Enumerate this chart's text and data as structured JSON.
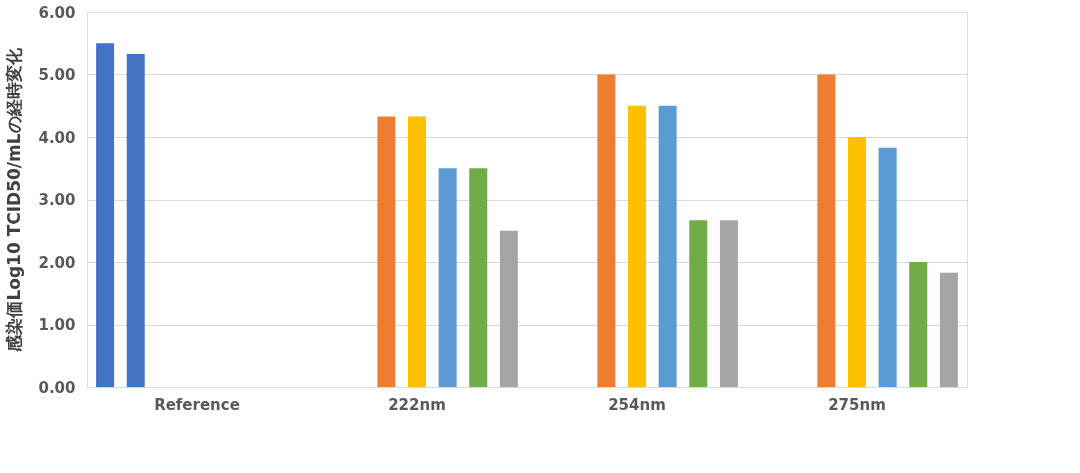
{
  "chart_data": {
    "type": "bar",
    "ylabel": "感染価Log10 TCID50/mLの経時変化",
    "categories": [
      "Reference",
      "222nm",
      "254nm",
      "275nm"
    ],
    "series": [
      {
        "color": "#4472c4",
        "values": [
          5.5,
          null,
          null,
          null
        ]
      },
      {
        "color": "#4472c4",
        "values": [
          5.33,
          null,
          null,
          null
        ]
      },
      {
        "color": "#ed7d31",
        "values": [
          null,
          4.33,
          5.0,
          5.0
        ]
      },
      {
        "color": "#ffc000",
        "values": [
          null,
          4.33,
          4.5,
          4.0
        ]
      },
      {
        "color": "#5b9bd5",
        "values": [
          null,
          3.5,
          4.5,
          3.83
        ]
      },
      {
        "color": "#70ad47",
        "values": [
          null,
          3.5,
          2.67,
          2.0
        ]
      },
      {
        "color": "#a5a5a5",
        "values": [
          null,
          2.5,
          2.67,
          1.83
        ]
      }
    ],
    "ylim": [
      0,
      6
    ],
    "yticks": [
      {
        "value": 0,
        "label": "0.00"
      },
      {
        "value": 1,
        "label": "1.00"
      },
      {
        "value": 2,
        "label": "2.00"
      },
      {
        "value": 3,
        "label": "3.00"
      },
      {
        "value": 4,
        "label": "4.00"
      },
      {
        "value": 5,
        "label": "5.00"
      },
      {
        "value": 6,
        "label": "6.00"
      }
    ],
    "grid": "y",
    "legend": false
  }
}
